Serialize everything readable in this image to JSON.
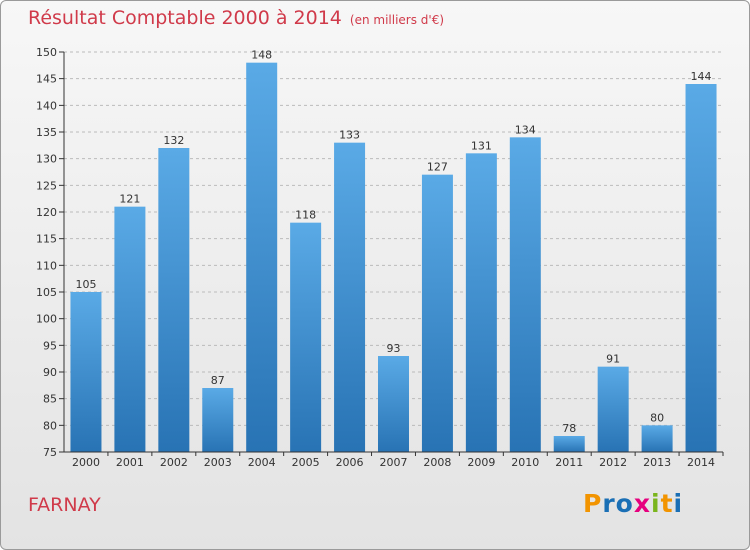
{
  "title": "Résultat Comptable 2000 à 2014",
  "unit": "(en milliers d'€)",
  "commune": "FARNAY",
  "logo": {
    "text": "Proxiti",
    "letters": [
      "P",
      "r",
      "o",
      "x",
      "i",
      "t",
      "i"
    ],
    "colors": [
      "#f29400",
      "#1a6fb5",
      "#1a6fb5",
      "#e6007e",
      "#7ab51d",
      "#f29400",
      "#1a6fb5"
    ]
  },
  "colors": {
    "bar_top": "#5aaae6",
    "bar_bottom": "#2873b4",
    "title": "#d03a4a",
    "grid": "#bbbbbb"
  },
  "chart_data": {
    "type": "bar",
    "title": "Résultat Comptable 2000 à 2014",
    "xlabel": "",
    "ylabel": "",
    "ylim": [
      75,
      150
    ],
    "yticks": [
      75,
      80,
      85,
      90,
      95,
      100,
      105,
      110,
      115,
      120,
      125,
      130,
      135,
      140,
      145,
      150
    ],
    "categories": [
      "2000",
      "2001",
      "2002",
      "2003",
      "2004",
      "2005",
      "2006",
      "2007",
      "2008",
      "2009",
      "2010",
      "2011",
      "2012",
      "2013",
      "2014"
    ],
    "values": [
      105,
      121,
      132,
      87,
      148,
      118,
      133,
      93,
      127,
      131,
      134,
      78,
      91,
      80,
      144
    ],
    "grid": true
  }
}
